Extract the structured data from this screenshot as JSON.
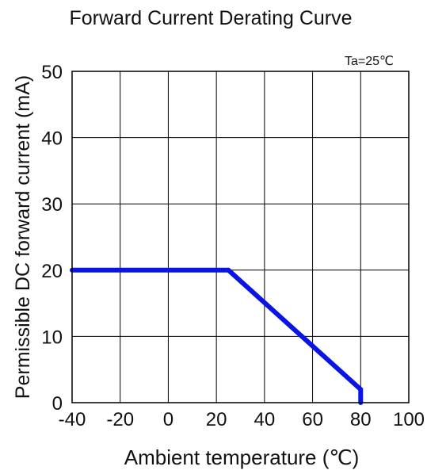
{
  "chart_data": {
    "type": "line",
    "title": "Forward Current Derating Curve",
    "annotation": "Ta=25℃",
    "xlabel": "Ambient temperature (℃)",
    "ylabel": "Permissible DC forward current (mA)",
    "xlim": [
      -40,
      100
    ],
    "ylim": [
      0,
      50
    ],
    "x_ticks": [
      -40,
      -20,
      0,
      20,
      40,
      60,
      80,
      100
    ],
    "y_ticks": [
      0,
      10,
      20,
      30,
      40,
      50
    ],
    "grid": true,
    "series": [
      {
        "x": [
          -40,
          25,
          80,
          80
        ],
        "y": [
          20,
          20,
          2,
          0
        ]
      }
    ],
    "colors": {
      "line": "#0a14e6",
      "grid": "#000000",
      "background": "#ffffff"
    }
  }
}
